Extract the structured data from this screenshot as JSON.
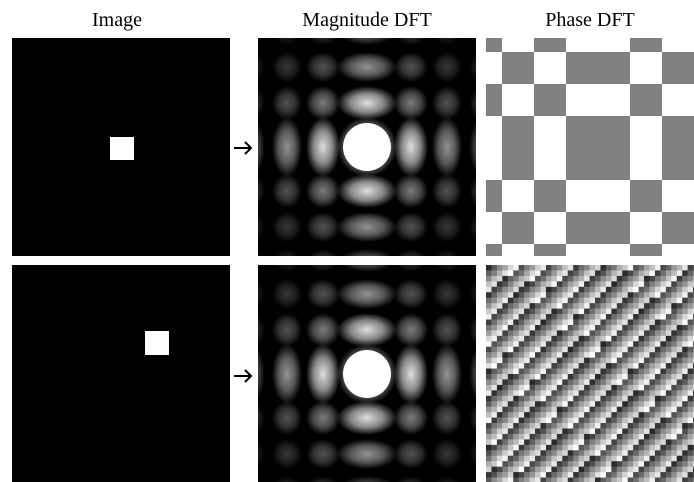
{
  "columns": [
    "Image",
    "Magnitude DFT",
    "Phase DFT"
  ]
}
